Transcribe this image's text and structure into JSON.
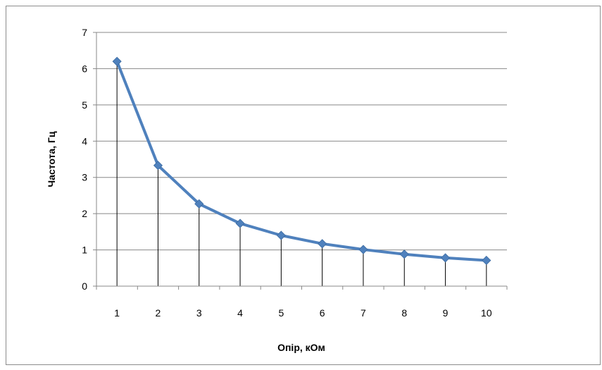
{
  "chart_data": {
    "type": "line",
    "title": "",
    "xlabel": "Опір, кОм",
    "ylabel": "Частота,  Гц",
    "categories": [
      "1",
      "2",
      "3",
      "4",
      "5",
      "6",
      "7",
      "8",
      "9",
      "10"
    ],
    "yticks": [
      "0",
      "1",
      "2",
      "3",
      "4",
      "5",
      "6",
      "7"
    ],
    "ylim": [
      0,
      7
    ],
    "grid": true,
    "drop_lines": true,
    "series": [
      {
        "color": "#4f81bd",
        "values": [
          6.2,
          3.33,
          2.27,
          1.73,
          1.4,
          1.17,
          1.01,
          0.88,
          0.78,
          0.71
        ]
      }
    ]
  }
}
